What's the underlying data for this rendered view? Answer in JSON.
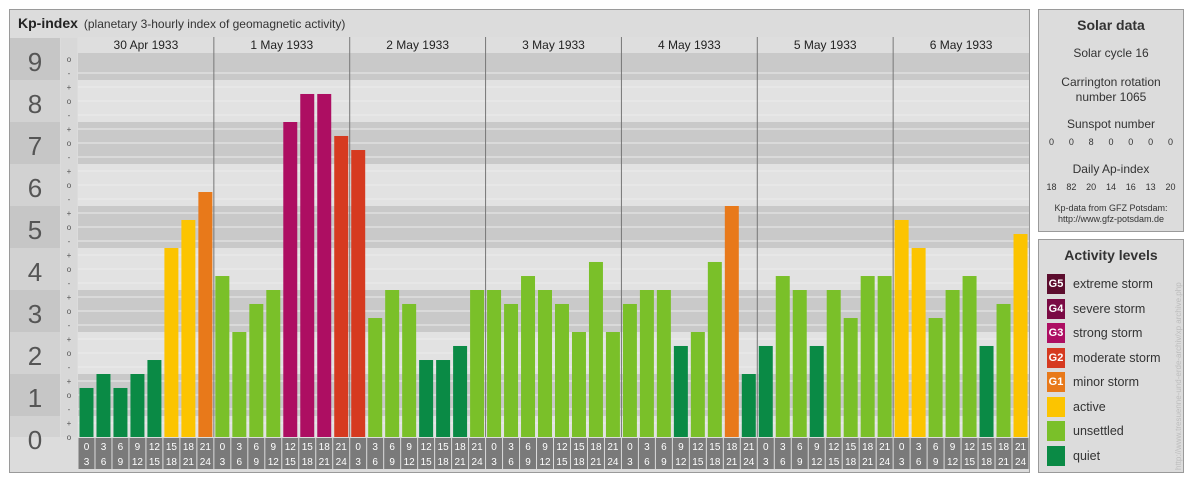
{
  "header": {
    "title": "Kp-index",
    "subtitle": "(planetary 3-hourly index of geomagnetic activity)"
  },
  "chart_data": {
    "type": "bar",
    "title": "Kp-index",
    "subtitle": "(planetary 3-hourly index of geomagnetic activity)",
    "ylim": [
      0,
      9
    ],
    "y_ticks": [
      "0",
      "1",
      "2",
      "3",
      "4",
      "5",
      "6",
      "7",
      "8",
      "9"
    ],
    "sub_ticks": [
      "o",
      "+",
      "-"
    ],
    "days": [
      "30 Apr 1933",
      "1 May 1933",
      "2 May 1933",
      "3 May 1933",
      "4 May 1933",
      "5 May 1933",
      "6 May 1933"
    ],
    "interval_labels": [
      [
        "0",
        "3"
      ],
      [
        "3",
        "6"
      ],
      [
        "6",
        "9"
      ],
      [
        "9",
        "12"
      ],
      [
        "12",
        "15"
      ],
      [
        "15",
        "18"
      ],
      [
        "18",
        "21"
      ],
      [
        "21",
        "24"
      ]
    ],
    "series": [
      {
        "values": [
          0.667,
          1.0,
          0.667,
          1.0,
          1.333,
          4.0,
          4.667,
          5.333,
          3.333,
          2.0,
          2.667,
          3.0,
          7.0,
          7.667,
          7.667,
          6.667,
          6.333,
          2.333,
          3.0,
          2.667,
          1.333,
          1.333,
          1.667,
          3.0,
          3.0,
          2.667,
          3.333,
          3.0,
          2.667,
          2.0,
          3.667,
          2.0,
          2.667,
          3.0,
          3.0,
          1.667,
          2.0,
          3.667,
          5.0,
          1.0,
          1.667,
          3.333,
          3.0,
          1.667,
          3.0,
          2.333,
          3.333,
          3.333,
          4.667,
          4.0,
          2.333,
          3.0,
          3.333,
          1.667,
          2.667,
          4.333
        ]
      }
    ],
    "grid": true
  },
  "solar": {
    "title": "Solar data",
    "cycle": "Solar cycle 16",
    "carrington_line1": "Carrington rotation",
    "carrington_line2": "number 1065",
    "sunspot_label": "Sunspot number",
    "sunspot_values": [
      "0",
      "0",
      "8",
      "0",
      "0",
      "0",
      "0"
    ],
    "ap_label": "Daily Ap-index",
    "ap_values": [
      "18",
      "82",
      "20",
      "14",
      "16",
      "13",
      "20"
    ],
    "source_line1": "Kp-data from GFZ Potsdam:",
    "source_line2": "http://www.gfz-potsdam.de"
  },
  "activity": {
    "title": "Activity levels",
    "items": [
      {
        "code": "G5",
        "label": "extreme storm",
        "color": "#5c0d2e"
      },
      {
        "code": "G4",
        "label": "severe storm",
        "color": "#7a0a44"
      },
      {
        "code": "G3",
        "label": "strong storm",
        "color": "#ad0e62"
      },
      {
        "code": "G2",
        "label": "moderate storm",
        "color": "#d63a20"
      },
      {
        "code": "G1",
        "label": "minor storm",
        "color": "#e8791a"
      },
      {
        "code": "",
        "label": "active",
        "color": "#fcc400"
      },
      {
        "code": "",
        "label": "unsettled",
        "color": "#7ac029"
      },
      {
        "code": "",
        "label": "quiet",
        "color": "#0a8a45"
      }
    ]
  },
  "watermark": "http://www.tresuenne-und-erde-archiv/xp archive.php"
}
